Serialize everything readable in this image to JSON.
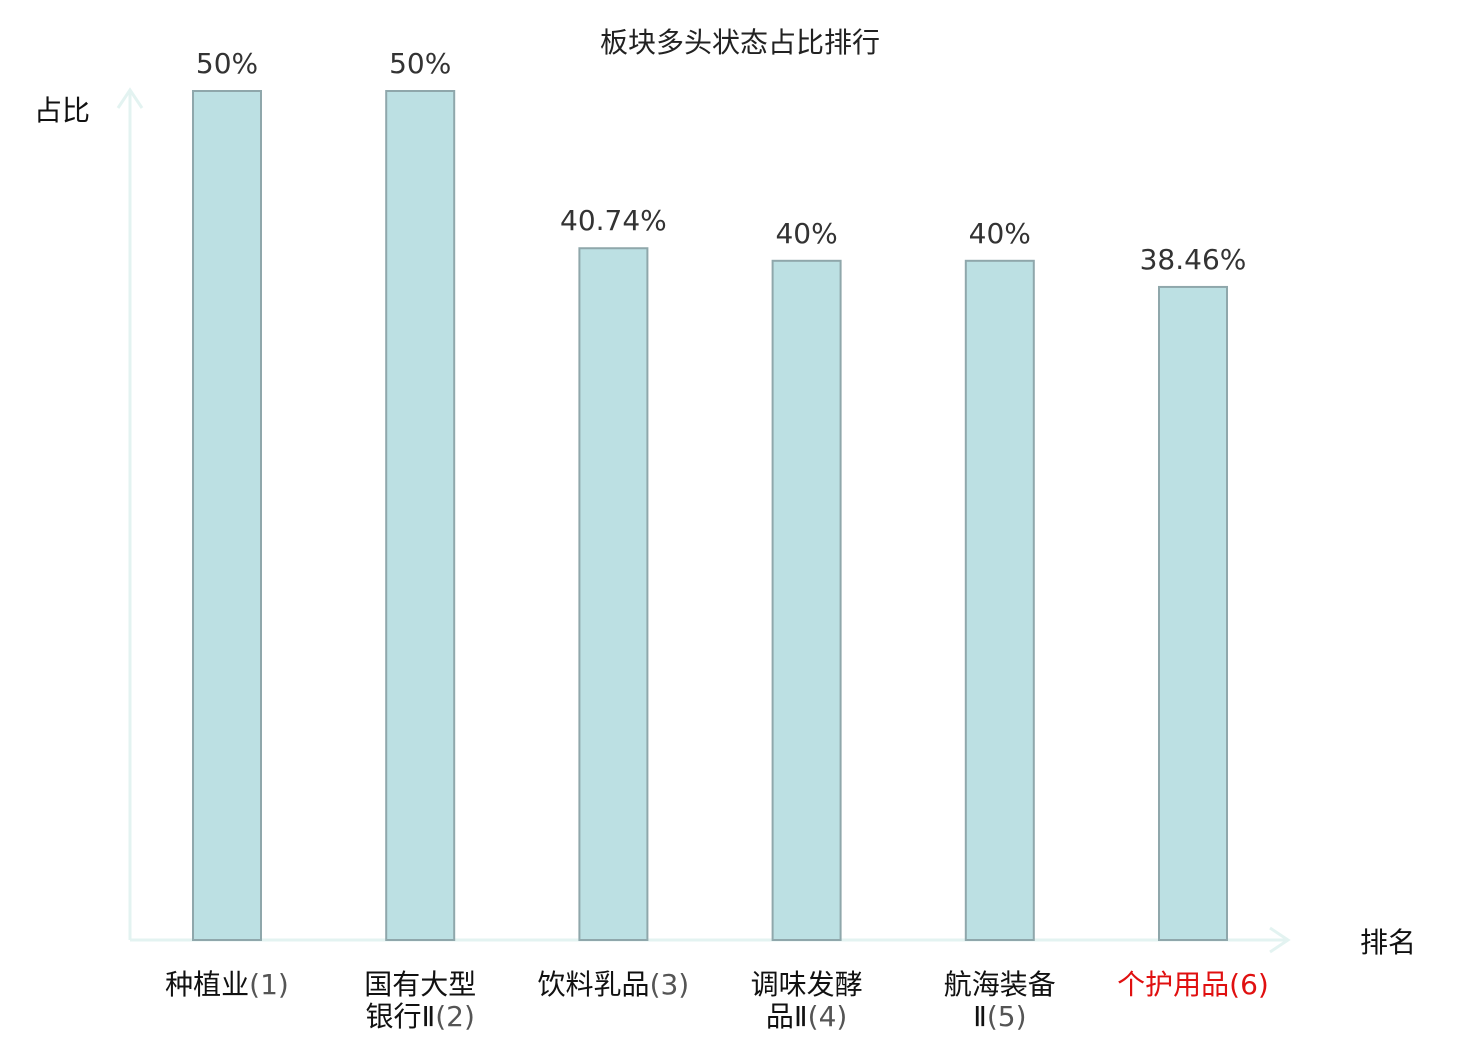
{
  "chart_data": {
    "type": "bar",
    "title": "板块多头状态占比排行",
    "ylabel": "占比",
    "xlabel": "排名",
    "ylim": [
      0,
      50
    ],
    "grid": false,
    "categories": [
      {
        "name_lines": [
          "种植业"
        ],
        "rank": "(1)"
      },
      {
        "name_lines": [
          "国有大型",
          "银行Ⅱ"
        ],
        "rank": "(2)"
      },
      {
        "name_lines": [
          "饮料乳品"
        ],
        "rank": "(3)"
      },
      {
        "name_lines": [
          "调味发酵",
          "品Ⅱ"
        ],
        "rank": "(4)"
      },
      {
        "name_lines": [
          "航海装备",
          "Ⅱ"
        ],
        "rank": "(5)"
      },
      {
        "name_lines": [
          "个护用品"
        ],
        "rank": "(6)"
      }
    ],
    "values": [
      50,
      50,
      40.74,
      40,
      40,
      38.46
    ],
    "value_labels": [
      "50%",
      "50%",
      "40.74%",
      "40%",
      "40%",
      "38.46%"
    ],
    "highlight_index": 5,
    "colors": {
      "bar_fill": "#bce0e3",
      "bar_stroke": "#8fa7ab",
      "axis": "#e3f3f1",
      "highlight": "#e01010",
      "text": "#111111",
      "rank_text": "#555555"
    }
  }
}
